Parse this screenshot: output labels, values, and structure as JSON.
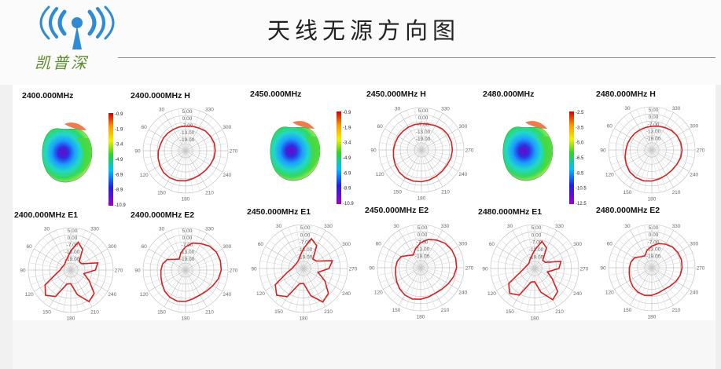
{
  "header": {
    "title": "天线无源方向图",
    "brand": "凯普深",
    "colors": {
      "logo_blue": "#2f8bd4",
      "brand_green": "#5a8c2a",
      "trace_red": "#d82020"
    }
  },
  "chart_data": [
    {
      "type": "heatmap",
      "title": "2400.000MHz",
      "colorbar_ticks": [
        "-0.9",
        "-1.9",
        "-3.4",
        "-4.9",
        "-6.9",
        "-8.9",
        "-10.9"
      ]
    },
    {
      "type": "polar",
      "title": "2400.000MHz  H",
      "radial_ticks": [
        "5.00",
        "0.00",
        "-7.00",
        "-13.00",
        "-19.00"
      ],
      "angle_ticks": [
        "0",
        "30",
        "60",
        "90",
        "120",
        "150",
        "180",
        "210",
        "240",
        "270",
        "300",
        "330"
      ],
      "series": [
        {
          "values": [
            0.58,
            0.6,
            0.62,
            0.66,
            0.68,
            0.7,
            0.7,
            0.69,
            0.67,
            0.66,
            0.66,
            0.68,
            0.71,
            0.73,
            0.74,
            0.73,
            0.7,
            0.67,
            0.64,
            0.61,
            0.6,
            0.59,
            0.58,
            0.58
          ]
        }
      ]
    },
    {
      "type": "polar",
      "title": "2400.000MHz  E1",
      "radial_ticks": [
        "5.00",
        "0.00",
        "-7.00",
        "-13.00",
        "-19.00"
      ],
      "angle_ticks": [
        "0",
        "30",
        "60",
        "90",
        "120",
        "150",
        "180",
        "210",
        "240",
        "270",
        "300",
        "330"
      ],
      "series": [
        {
          "values": [
            0.45,
            0.68,
            0.56,
            0.28,
            0.3,
            0.66,
            0.58,
            0.32,
            0.5,
            0.78,
            0.86,
            0.6,
            0.32,
            0.34,
            0.72,
            0.84,
            0.7,
            0.36,
            0.25,
            0.22,
            0.2,
            0.2,
            0.24,
            0.3
          ]
        }
      ]
    },
    {
      "type": "polar",
      "title": "2400.000MHz  E2",
      "radial_ticks": [
        "5.00",
        "0.00",
        "-7.00",
        "-13.00",
        "-19.00"
      ],
      "angle_ticks": [
        "0",
        "30",
        "60",
        "90",
        "120",
        "150",
        "180",
        "210",
        "240",
        "270",
        "300",
        "330"
      ],
      "series": [
        {
          "values": [
            0.55,
            0.66,
            0.72,
            0.8,
            0.84,
            0.85,
            0.84,
            0.8,
            0.74,
            0.7,
            0.68,
            0.7,
            0.74,
            0.76,
            0.74,
            0.7,
            0.64,
            0.6,
            0.58,
            0.56,
            0.5,
            0.36,
            0.3,
            0.42
          ]
        }
      ]
    },
    {
      "type": "heatmap",
      "title": "2450.000MHz",
      "colorbar_ticks": [
        "-0.9",
        "-1.9",
        "-3.4",
        "-4.9",
        "-6.9",
        "-8.9",
        "-10.9"
      ]
    },
    {
      "type": "polar",
      "title": "2450.000MHz  H",
      "radial_ticks": [
        "5.00",
        "0.00",
        "-7.00",
        "-13.00",
        "-19.00"
      ],
      "angle_ticks": [
        "0",
        "30",
        "60",
        "90",
        "120",
        "150",
        "180",
        "210",
        "240",
        "270",
        "300",
        "330"
      ],
      "series": [
        {
          "values": [
            0.62,
            0.63,
            0.66,
            0.7,
            0.72,
            0.73,
            0.73,
            0.72,
            0.7,
            0.7,
            0.71,
            0.73,
            0.75,
            0.76,
            0.76,
            0.74,
            0.71,
            0.68,
            0.66,
            0.64,
            0.63,
            0.62,
            0.62,
            0.62
          ]
        }
      ]
    },
    {
      "type": "polar",
      "title": "2450.000MHz  E1",
      "radial_ticks": [
        "5.00",
        "0.00",
        "-7.00",
        "-13.00",
        "-19.00"
      ],
      "angle_ticks": [
        "0",
        "30",
        "60",
        "90",
        "120",
        "150",
        "180",
        "210",
        "240",
        "270",
        "300",
        "330"
      ],
      "series": [
        {
          "values": [
            0.45,
            0.7,
            0.6,
            0.3,
            0.34,
            0.68,
            0.58,
            0.34,
            0.56,
            0.8,
            0.88,
            0.64,
            0.34,
            0.36,
            0.74,
            0.86,
            0.74,
            0.4,
            0.26,
            0.22,
            0.2,
            0.2,
            0.22,
            0.3
          ]
        }
      ]
    },
    {
      "type": "polar",
      "title": "2450.000MHz  E2",
      "radial_ticks": [
        "5.00",
        "0.00",
        "-7.00",
        "-13.00",
        "-19.00"
      ],
      "angle_ticks": [
        "0",
        "30",
        "60",
        "90",
        "120",
        "150",
        "180",
        "210",
        "240",
        "270",
        "300",
        "330"
      ],
      "series": [
        {
          "values": [
            0.58,
            0.68,
            0.74,
            0.8,
            0.83,
            0.84,
            0.83,
            0.79,
            0.74,
            0.7,
            0.68,
            0.7,
            0.73,
            0.75,
            0.73,
            0.69,
            0.64,
            0.6,
            0.58,
            0.56,
            0.52,
            0.4,
            0.34,
            0.46
          ]
        }
      ]
    },
    {
      "type": "heatmap",
      "title": "2480.000MHz",
      "colorbar_ticks": [
        "-2.5",
        "-3.5",
        "-5.0",
        "-6.5",
        "-8.5",
        "-10.5",
        "-12.5"
      ]
    },
    {
      "type": "polar",
      "title": "2480.000MHz  H",
      "radial_ticks": [
        "5.00",
        "0.00",
        "-7.00",
        "-13.00",
        "-19.00"
      ],
      "angle_ticks": [
        "0",
        "30",
        "60",
        "90",
        "120",
        "150",
        "180",
        "210",
        "240",
        "270",
        "300",
        "330"
      ],
      "series": [
        {
          "values": [
            0.55,
            0.57,
            0.6,
            0.64,
            0.67,
            0.69,
            0.7,
            0.69,
            0.67,
            0.66,
            0.67,
            0.69,
            0.72,
            0.74,
            0.74,
            0.72,
            0.68,
            0.64,
            0.6,
            0.58,
            0.56,
            0.55,
            0.54,
            0.54
          ]
        }
      ]
    },
    {
      "type": "polar",
      "title": "2480.000MHz  E1",
      "radial_ticks": [
        "5.00",
        "0.00",
        "-7.00",
        "-13.00",
        "-19.00"
      ],
      "angle_ticks": [
        "0",
        "30",
        "60",
        "90",
        "120",
        "150",
        "180",
        "210",
        "240",
        "270",
        "300",
        "330"
      ],
      "series": [
        {
          "values": [
            0.42,
            0.64,
            0.54,
            0.26,
            0.28,
            0.62,
            0.55,
            0.3,
            0.46,
            0.74,
            0.82,
            0.56,
            0.3,
            0.32,
            0.7,
            0.8,
            0.68,
            0.34,
            0.24,
            0.2,
            0.18,
            0.18,
            0.22,
            0.28
          ]
        }
      ]
    },
    {
      "type": "polar",
      "title": "2480.000MHz  E2",
      "radial_ticks": [
        "5.00",
        "0.00",
        "-7.00",
        "-13.00",
        "-19.00"
      ],
      "angle_ticks": [
        "0",
        "30",
        "60",
        "90",
        "120",
        "150",
        "180",
        "210",
        "240",
        "270",
        "300",
        "330"
      ],
      "series": [
        {
          "values": [
            0.5,
            0.58,
            0.63,
            0.68,
            0.7,
            0.71,
            0.7,
            0.68,
            0.64,
            0.6,
            0.58,
            0.6,
            0.64,
            0.66,
            0.65,
            0.62,
            0.58,
            0.54,
            0.52,
            0.5,
            0.46,
            0.36,
            0.32,
            0.42
          ]
        }
      ]
    }
  ]
}
